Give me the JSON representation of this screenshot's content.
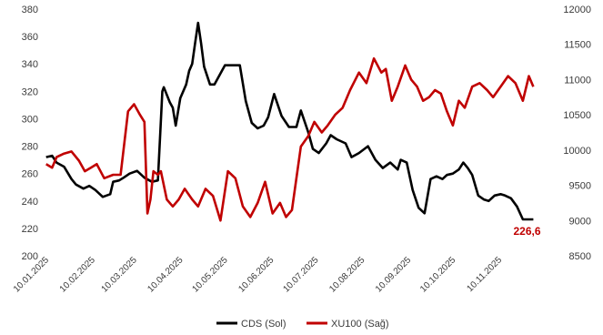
{
  "chart_data": {
    "type": "line",
    "title": "",
    "xlabel": "",
    "x_ticks": [
      "10.01.2025",
      "10.02.2025",
      "10.03.2025",
      "10.04.2025",
      "10.05.2025",
      "10.06.2025",
      "10.07.2025",
      "10.08.2025",
      "10.09.2025",
      "10.10.2025",
      "10.11.2025"
    ],
    "y_left": {
      "ylim": [
        200,
        380
      ],
      "ticks": [
        200,
        220,
        240,
        260,
        280,
        300,
        320,
        340,
        360,
        380
      ]
    },
    "y_right": {
      "ylim": [
        8500,
        12000
      ],
      "ticks": [
        8500,
        9000,
        9500,
        10000,
        10500,
        11000,
        11500,
        12000
      ]
    },
    "grid": false,
    "legend_position": "bottom-center",
    "colors": {
      "cds": "#000000",
      "xu100": "#c00000"
    },
    "series": [
      {
        "name": "CDS (Sol)",
        "axis": "left",
        "x": [
          "2025-01-08",
          "2025-01-12",
          "2025-01-15",
          "2025-01-20",
          "2025-01-25",
          "2025-01-28",
          "2025-02-02",
          "2025-02-06",
          "2025-02-10",
          "2025-02-15",
          "2025-02-20",
          "2025-02-22",
          "2025-02-26",
          "2025-03-01",
          "2025-03-05",
          "2025-03-10",
          "2025-03-15",
          "2025-03-20",
          "2025-03-24",
          "2025-03-27",
          "2025-03-28",
          "2025-04-01",
          "2025-04-03",
          "2025-04-05",
          "2025-04-08",
          "2025-04-12",
          "2025-04-14",
          "2025-04-16",
          "2025-04-18",
          "2025-04-20",
          "2025-04-22",
          "2025-04-24",
          "2025-04-28",
          "2025-05-01",
          "2025-05-08",
          "2025-05-13",
          "2025-05-15",
          "2025-05-18",
          "2025-05-22",
          "2025-05-26",
          "2025-05-30",
          "2025-06-03",
          "2025-06-06",
          "2025-06-10",
          "2025-06-15",
          "2025-06-20",
          "2025-06-25",
          "2025-06-28",
          "2025-07-03",
          "2025-07-06",
          "2025-07-10",
          "2025-07-15",
          "2025-07-18",
          "2025-07-22",
          "2025-07-28",
          "2025-08-01",
          "2025-08-06",
          "2025-08-12",
          "2025-08-17",
          "2025-08-22",
          "2025-08-27",
          "2025-09-01",
          "2025-09-03",
          "2025-09-07",
          "2025-09-11",
          "2025-09-15",
          "2025-09-19",
          "2025-09-23",
          "2025-09-27",
          "2025-10-01",
          "2025-10-04",
          "2025-10-08",
          "2025-10-12",
          "2025-10-15",
          "2025-10-18",
          "2025-10-21",
          "2025-10-25",
          "2025-10-29",
          "2025-11-01",
          "2025-11-05",
          "2025-11-09",
          "2025-11-12",
          "2025-11-16",
          "2025-11-20",
          "2025-11-24",
          "2025-11-28",
          "2025-12-01"
        ],
        "values": [
          272,
          273,
          268,
          265,
          256,
          252,
          249,
          251,
          248,
          243,
          245,
          254,
          255,
          257,
          260,
          262,
          257,
          254,
          255,
          320,
          323,
          312,
          308,
          295,
          315,
          325,
          335,
          340,
          355,
          370,
          355,
          338,
          325,
          325,
          339,
          339,
          339,
          339,
          313,
          297,
          293,
          295,
          301,
          318,
          302,
          294,
          294,
          306,
          290,
          278,
          275,
          282,
          288,
          285,
          282,
          272,
          275,
          280,
          270,
          264,
          268,
          263,
          270,
          268,
          248,
          235,
          231,
          256,
          258,
          256,
          259,
          260,
          263,
          268,
          264,
          259,
          244,
          241,
          240,
          244,
          245,
          244,
          242,
          236,
          226.6,
          226.6,
          226.6
        ]
      },
      {
        "name": "XU100 (Sağ)",
        "axis": "right",
        "x": [
          "2025-01-08",
          "2025-01-12",
          "2025-01-15",
          "2025-01-20",
          "2025-01-25",
          "2025-01-30",
          "2025-02-03",
          "2025-02-07",
          "2025-02-11",
          "2025-02-16",
          "2025-02-22",
          "2025-02-27",
          "2025-03-04",
          "2025-03-08",
          "2025-03-12",
          "2025-03-15",
          "2025-03-17",
          "2025-03-19",
          "2025-03-21",
          "2025-03-24",
          "2025-03-26",
          "2025-03-30",
          "2025-04-03",
          "2025-04-07",
          "2025-04-11",
          "2025-04-16",
          "2025-04-20",
          "2025-04-25",
          "2025-04-30",
          "2025-05-05",
          "2025-05-10",
          "2025-05-15",
          "2025-05-20",
          "2025-05-25",
          "2025-05-30",
          "2025-06-04",
          "2025-06-09",
          "2025-06-14",
          "2025-06-18",
          "2025-06-22",
          "2025-06-25",
          "2025-06-28",
          "2025-07-03",
          "2025-07-07",
          "2025-07-12",
          "2025-07-16",
          "2025-07-21",
          "2025-07-26",
          "2025-07-31",
          "2025-08-06",
          "2025-08-11",
          "2025-08-16",
          "2025-08-21",
          "2025-08-24",
          "2025-08-28",
          "2025-09-01",
          "2025-09-06",
          "2025-09-10",
          "2025-09-14",
          "2025-09-18",
          "2025-09-22",
          "2025-09-26",
          "2025-09-30",
          "2025-10-04",
          "2025-10-08",
          "2025-10-12",
          "2025-10-16",
          "2025-10-21",
          "2025-10-26",
          "2025-10-31",
          "2025-11-04",
          "2025-11-09",
          "2025-11-14",
          "2025-11-19",
          "2025-11-24",
          "2025-11-28",
          "2025-12-01"
        ],
        "values": [
          9800,
          9750,
          9900,
          9950,
          9980,
          9850,
          9700,
          9750,
          9800,
          9600,
          9650,
          9650,
          10550,
          10650,
          10500,
          10400,
          9100,
          9300,
          9700,
          9650,
          9700,
          9300,
          9200,
          9300,
          9450,
          9300,
          9200,
          9450,
          9350,
          9000,
          9700,
          9600,
          9200,
          9050,
          9250,
          9550,
          9100,
          9250,
          9050,
          9150,
          9600,
          10050,
          10200,
          10400,
          10250,
          10350,
          10500,
          10600,
          10850,
          11100,
          10950,
          11300,
          11100,
          11150,
          10700,
          10900,
          11200,
          11000,
          10900,
          10700,
          10750,
          10850,
          10800,
          10550,
          10350,
          10700,
          10600,
          10900,
          10950,
          10850,
          10750,
          10900,
          11050,
          10950,
          10700,
          11050,
          10900
        ]
      }
    ],
    "annotations": [
      {
        "text": "226,6",
        "x": "2025-11-28",
        "y": 226.6,
        "axis": "left",
        "color": "#c00000"
      }
    ]
  }
}
